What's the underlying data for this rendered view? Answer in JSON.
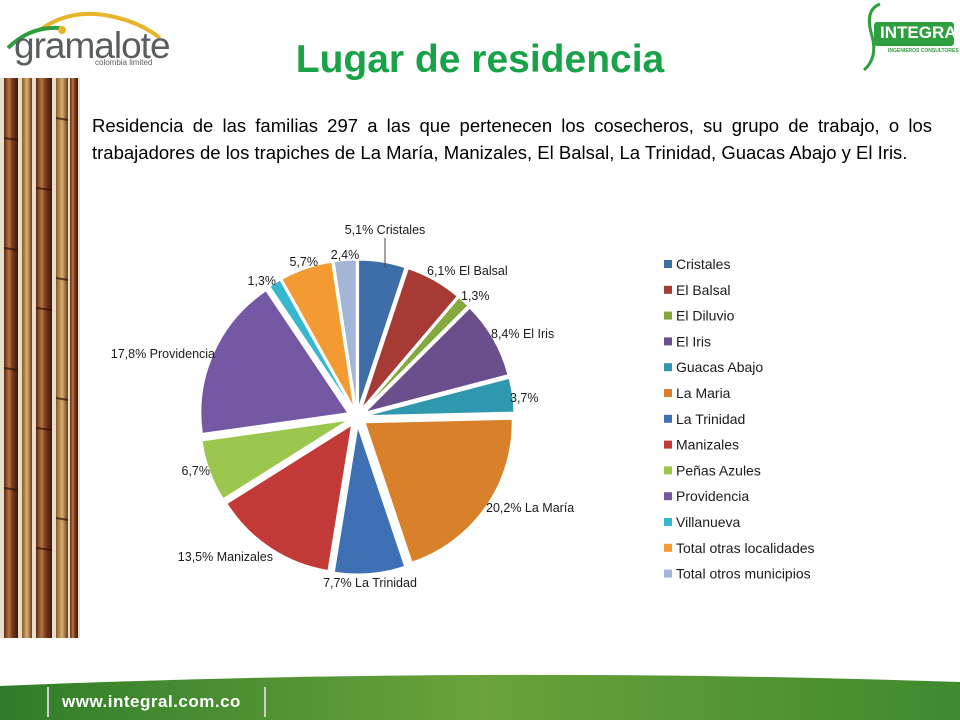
{
  "logos": {
    "left_word": "gramalote",
    "left_sub": "colombia limited",
    "right_name": "INTEGRAL",
    "right_tag": "INGENIEROS CONSULTORES"
  },
  "title": "Lugar de residencia",
  "intro": "Residencia de las familias 297 a las que pertenecen los cosecheros, su grupo de trabajo, o los trabajadores de los trapiches de La María, Manizales, El Balsal, La Trinidad, Guacas Abajo y El Iris.",
  "footer": {
    "url": "www.integral.com.co"
  },
  "chart_data": {
    "type": "pie",
    "title": "",
    "series": [
      {
        "name": "Cristales",
        "value": 5.1,
        "color": "#3e6ea8",
        "label": "5,1% Cristales"
      },
      {
        "name": "El Balsal",
        "value": 6.1,
        "color": "#a83a36",
        "label": "6,1% El Balsal"
      },
      {
        "name": "El Diluvio",
        "value": 1.3,
        "color": "#86a83f",
        "label": "1,3%"
      },
      {
        "name": "El Iris",
        "value": 8.4,
        "color": "#6b4f8c",
        "label": "8,4% El Iris"
      },
      {
        "name": "Guacas Abajo",
        "value": 3.7,
        "color": "#2f98ae",
        "label": "3,7%"
      },
      {
        "name": "La Maria",
        "value": 20.2,
        "color": "#d9802a",
        "label": "20,2% La María"
      },
      {
        "name": "La Trinidad",
        "value": 7.7,
        "color": "#3f70b3",
        "label": "7,7% La Trinidad"
      },
      {
        "name": "Manizales",
        "value": 13.5,
        "color": "#c23a38",
        "label": "13,5% Manizales"
      },
      {
        "name": "Peñas Azules",
        "value": 6.7,
        "color": "#9bc74e",
        "label": "6,7%"
      },
      {
        "name": "Providencia",
        "value": 17.8,
        "color": "#7558a3",
        "label": "17,8% Providencia"
      },
      {
        "name": "Villanueva",
        "value": 1.3,
        "color": "#36b7d0",
        "label": "1,3%"
      },
      {
        "name": "Total otras localidades",
        "value": 5.7,
        "color": "#f39a33",
        "label": "5,7%"
      },
      {
        "name": "Total otros municipios",
        "value": 2.4,
        "color": "#a4b6d8",
        "label": "2,4%"
      }
    ],
    "legend_position": "right"
  }
}
